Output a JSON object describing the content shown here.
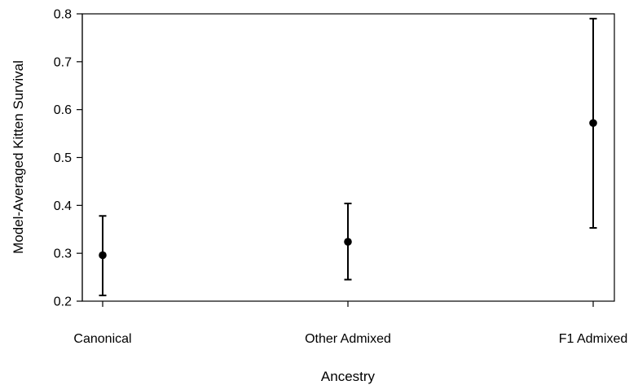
{
  "chart_data": {
    "type": "scatter",
    "title": "",
    "xlabel": "Ancestry",
    "ylabel": "Model-Averaged Kitten Survival",
    "categories": [
      "Canonical",
      "Other Admixed",
      "F1 Admixed"
    ],
    "series": [
      {
        "values": [
          0.296,
          0.324,
          0.572
        ],
        "lower": [
          0.212,
          0.245,
          0.353
        ],
        "upper": [
          0.378,
          0.404,
          0.79
        ]
      }
    ],
    "ylim": [
      0.2,
      0.8
    ],
    "yticks": [
      "0.2",
      "0.3",
      "0.4",
      "0.5",
      "0.6",
      "0.7",
      "0.8"
    ],
    "grid": false,
    "legend": "none"
  }
}
